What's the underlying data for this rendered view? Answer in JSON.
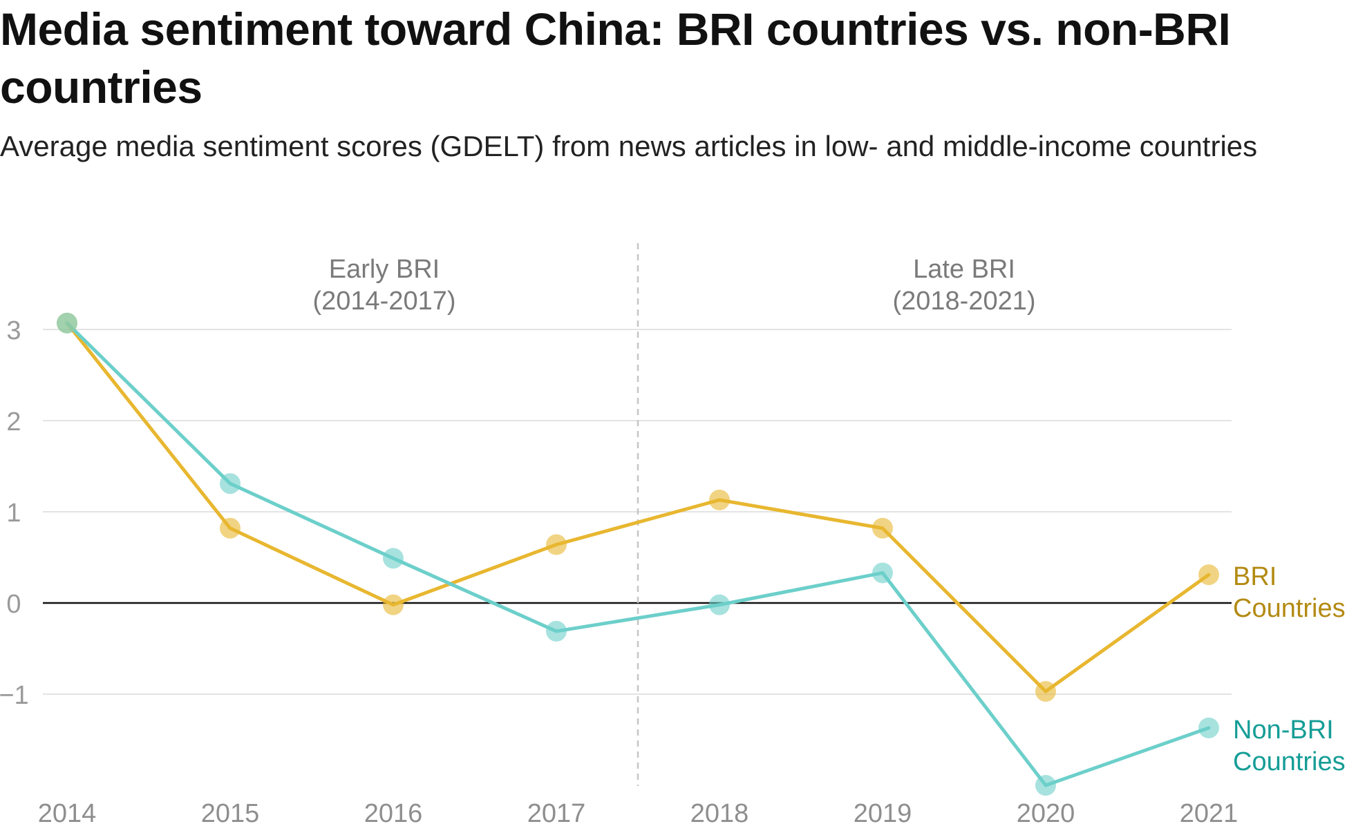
{
  "title": "Media sentiment toward China: BRI countries vs. non-BRI countries",
  "subtitle": "Average media sentiment scores (GDELT) from news articles in low- and middle-income countries",
  "periods": [
    {
      "line1": "Early BRI",
      "line2": "(2014-2017)"
    },
    {
      "line1": "Late BRI",
      "line2": "(2018-2021)"
    }
  ],
  "chart_data": {
    "type": "line",
    "title": "Media sentiment toward China: BRI countries vs. non-BRI countries",
    "subtitle": "Average media sentiment scores (GDELT) from news articles in low- and middle-income countries",
    "x": [
      "2014",
      "2015",
      "2016",
      "2017",
      "2018",
      "2019",
      "2020",
      "2021"
    ],
    "yticks": [
      3,
      2,
      1,
      0,
      -1
    ],
    "ytick_labels": [
      "3",
      "2",
      "1",
      "0",
      "−1"
    ],
    "ylim": [
      -2.0,
      3.3
    ],
    "grid": true,
    "divider_after": "2017",
    "series": [
      {
        "name": "BRI Countries",
        "label_lines": [
          "BRI",
          "Countries"
        ],
        "color": "#E8B730",
        "label_color": "#B38A12",
        "values": [
          3.07,
          0.82,
          -0.02,
          0.64,
          1.13,
          0.82,
          -0.97,
          0.31
        ]
      },
      {
        "name": "Non-BRI Countries",
        "label_lines": [
          "Non-BRI",
          "Countries"
        ],
        "color": "#6CCFCA",
        "label_color": "#159D96",
        "values": [
          3.07,
          1.31,
          0.49,
          -0.31,
          -0.02,
          0.33,
          -2.0,
          -1.37
        ]
      }
    ]
  }
}
